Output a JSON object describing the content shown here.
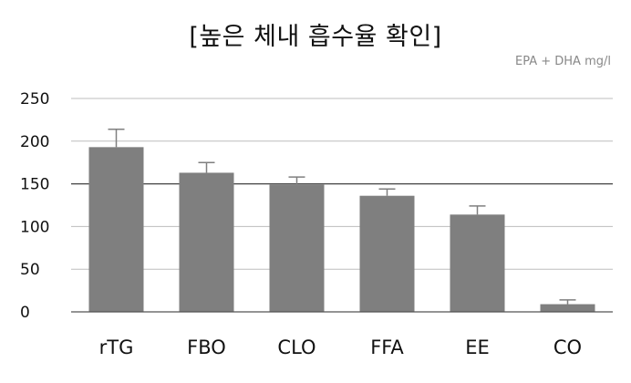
{
  "chart_data": {
    "type": "bar",
    "title": "[높은 체내 흡수율 확인]",
    "unit_label": "EPA + DHA mg/l",
    "categories": [
      "rTG",
      "FBO",
      "CLO",
      "FFA",
      "EE",
      "CO"
    ],
    "values": [
      193,
      163,
      149,
      136,
      114,
      9
    ],
    "error_upper": [
      21,
      12,
      9,
      8,
      10,
      5
    ],
    "ylim": [
      0,
      250
    ],
    "yticks": [
      "0",
      "50",
      "100",
      "150",
      "200",
      "250"
    ],
    "bar_color": "#7f7f7f",
    "grid": false,
    "reference_line": 150
  }
}
